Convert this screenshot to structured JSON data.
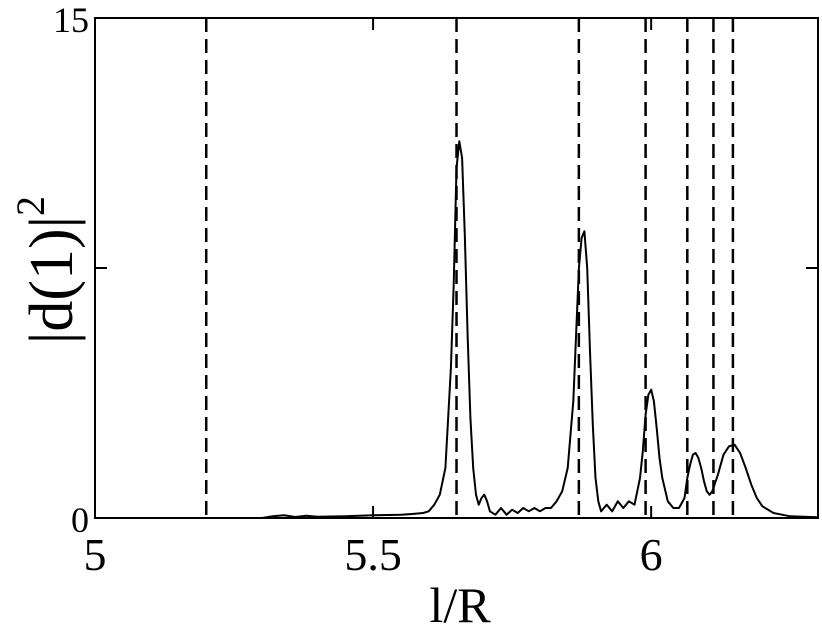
{
  "chart_data": {
    "type": "line",
    "xlabel": "l/R",
    "ylabel": "|d(1)|",
    "ylabel_superscript": "2",
    "xlim": [
      5,
      6.3
    ],
    "ylim": [
      0,
      15
    ],
    "x_ticks": [
      5,
      5.5,
      6
    ],
    "x_tick_labels": [
      "5",
      "5.5",
      "6"
    ],
    "y_ticks": [
      0,
      7.5,
      15
    ],
    "y_tick_labels": [
      "0",
      "",
      "15"
    ],
    "grid": false,
    "series": [
      {
        "style": "solid",
        "color": "#000000",
        "x": [
          5.0,
          5.3,
          5.32,
          5.34,
          5.36,
          5.38,
          5.4,
          5.45,
          5.5,
          5.55,
          5.57,
          5.59,
          5.6,
          5.61,
          5.62,
          5.63,
          5.64,
          5.645,
          5.65,
          5.655,
          5.66,
          5.665,
          5.67,
          5.675,
          5.68,
          5.685,
          5.69,
          5.695,
          5.7,
          5.705,
          5.71,
          5.72,
          5.73,
          5.74,
          5.75,
          5.76,
          5.77,
          5.78,
          5.79,
          5.8,
          5.81,
          5.82,
          5.83,
          5.84,
          5.85,
          5.86,
          5.865,
          5.87,
          5.875,
          5.88,
          5.885,
          5.89,
          5.895,
          5.9,
          5.905,
          5.91,
          5.915,
          5.92,
          5.93,
          5.94,
          5.95,
          5.96,
          5.97,
          5.98,
          5.985,
          5.99,
          5.995,
          6.0,
          6.005,
          6.01,
          6.015,
          6.02,
          6.03,
          6.04,
          6.05,
          6.06,
          6.065,
          6.07,
          6.075,
          6.08,
          6.085,
          6.09,
          6.095,
          6.1,
          6.105,
          6.11,
          6.12,
          6.13,
          6.14,
          6.15,
          6.16,
          6.17,
          6.18,
          6.19,
          6.2,
          6.22,
          6.25,
          6.3
        ],
        "y": [
          0,
          0,
          0.05,
          0.08,
          0.03,
          0.07,
          0.04,
          0.05,
          0.08,
          0.1,
          0.12,
          0.15,
          0.2,
          0.4,
          0.7,
          1.5,
          4.5,
          7.0,
          10.5,
          11.3,
          10.8,
          8.5,
          5.5,
          3.0,
          1.5,
          0.7,
          0.4,
          0.6,
          0.7,
          0.5,
          0.2,
          0.1,
          0.3,
          0.1,
          0.25,
          0.15,
          0.3,
          0.2,
          0.3,
          0.2,
          0.3,
          0.3,
          0.5,
          0.8,
          1.5,
          3.5,
          5.5,
          7.5,
          8.4,
          8.6,
          7.5,
          5.0,
          2.8,
          1.2,
          0.5,
          0.2,
          0.3,
          0.4,
          0.2,
          0.5,
          0.3,
          0.5,
          0.4,
          1.2,
          2.0,
          3.1,
          3.7,
          3.85,
          3.5,
          2.7,
          1.8,
          1.2,
          0.5,
          0.3,
          0.3,
          0.6,
          1.2,
          1.6,
          1.9,
          1.95,
          1.8,
          1.5,
          1.1,
          0.8,
          0.7,
          0.8,
          1.3,
          1.9,
          2.15,
          2.2,
          1.95,
          1.5,
          1.0,
          0.6,
          0.35,
          0.15,
          0.05,
          0.02
        ]
      }
    ],
    "vertical_lines": {
      "style": "dashed",
      "color": "#000000",
      "x": [
        5.2,
        5.65,
        5.87,
        5.99,
        6.065,
        6.112,
        6.147
      ]
    }
  }
}
